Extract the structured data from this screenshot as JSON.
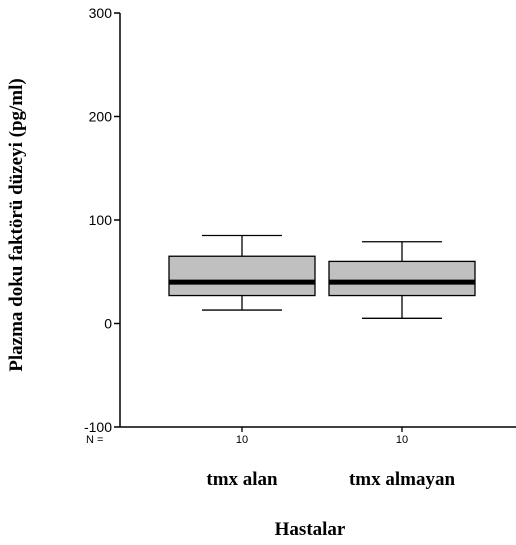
{
  "chart_data": {
    "type": "box",
    "xlabel": "Hastalar",
    "ylabel": "Plazma doku faktörü düzeyi (pg/ml)",
    "ylim": [
      -100,
      300
    ],
    "yticks": [
      {
        "value": 300,
        "label": "300"
      },
      {
        "value": 200,
        "label": "200"
      },
      {
        "value": 100,
        "label": "100"
      },
      {
        "value": 0,
        "label": "0"
      },
      {
        "value": -100,
        "label": "-100"
      }
    ],
    "n_label": "N =",
    "categories": [
      "tmx alan",
      "tmx almayan"
    ],
    "n_values": [
      "10",
      "10"
    ],
    "boxes": [
      {
        "category": "tmx alan",
        "whisker_low": 13,
        "q1": 27,
        "median": 40,
        "q3": 65,
        "whisker_high": 85
      },
      {
        "category": "tmx almayan",
        "whisker_low": 5,
        "q1": 27,
        "median": 40,
        "q3": 60,
        "whisker_high": 79
      }
    ],
    "grid": false,
    "colors": {
      "box_fill": "#c0c0c0",
      "line": "#000000"
    }
  }
}
